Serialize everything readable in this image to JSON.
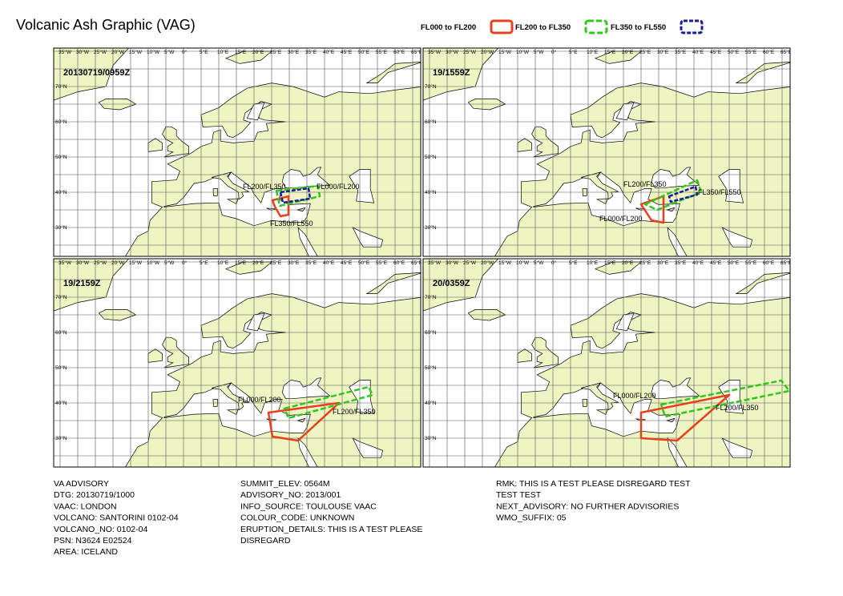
{
  "title": "Volcanic Ash Graphic (VAG)",
  "legend": [
    {
      "label": "FL000 to FL200",
      "color": "#e8401c"
    },
    {
      "label": "FL200 to FL350",
      "color": "#2ec81a"
    },
    {
      "label": "FL350 to FL550",
      "color": "#1a1aa0"
    }
  ],
  "lon_labels": [
    "35°W",
    "30°W",
    "25°W",
    "20°W",
    "15°W",
    "10°W",
    "5°W",
    "0°",
    "5°E",
    "10°E",
    "15°E",
    "20°E",
    "25°E",
    "30°E",
    "35°E",
    "40°E",
    "45°E",
    "50°E",
    "55°E",
    "60°E",
    "65°E"
  ],
  "lat_labels": [
    "70°N",
    "60°N",
    "50°N",
    "40°N",
    "30°N"
  ],
  "panels": [
    {
      "time": "20130719/0959Z",
      "labels": [
        "FL200/FL350",
        "FL000/FL200",
        "FL350/FL550"
      ]
    },
    {
      "time": "19/1559Z",
      "labels": [
        "FL200/FL350",
        "FL350/FL550",
        "FL000/FL200"
      ]
    },
    {
      "time": "19/2159Z",
      "labels": [
        "FL000/FL200",
        "FL200/FL350"
      ]
    },
    {
      "time": "20/0359Z",
      "labels": [
        "FL000/FL200",
        "FL200/FL350"
      ]
    }
  ],
  "info": [
    [
      "VA ADVISORY",
      "DTG: 20130719/1000",
      "VAAC: LONDON",
      "VOLCANO: SANTORINI 0102-04",
      "VOLCANO_NO: 0102-04",
      "PSN: N3624 E02524",
      "AREA: ICELAND"
    ],
    [
      "SUMMIT_ELEV: 0564M",
      "ADVISORY_NO: 2013/001",
      "INFO_SOURCE: TOULOUSE VAAC",
      "COLOUR_CODE: UNKNOWN",
      "ERUPTION_DETAILS: THIS IS A TEST PLEASE",
      "DISREGARD"
    ],
    [
      "RMK: THIS IS A TEST PLEASE DISREGARD TEST",
      "TEST TEST",
      "NEXT_ADVISORY: NO FURTHER ADVISORIES",
      "WMO_SUFFIX: 05"
    ]
  ]
}
